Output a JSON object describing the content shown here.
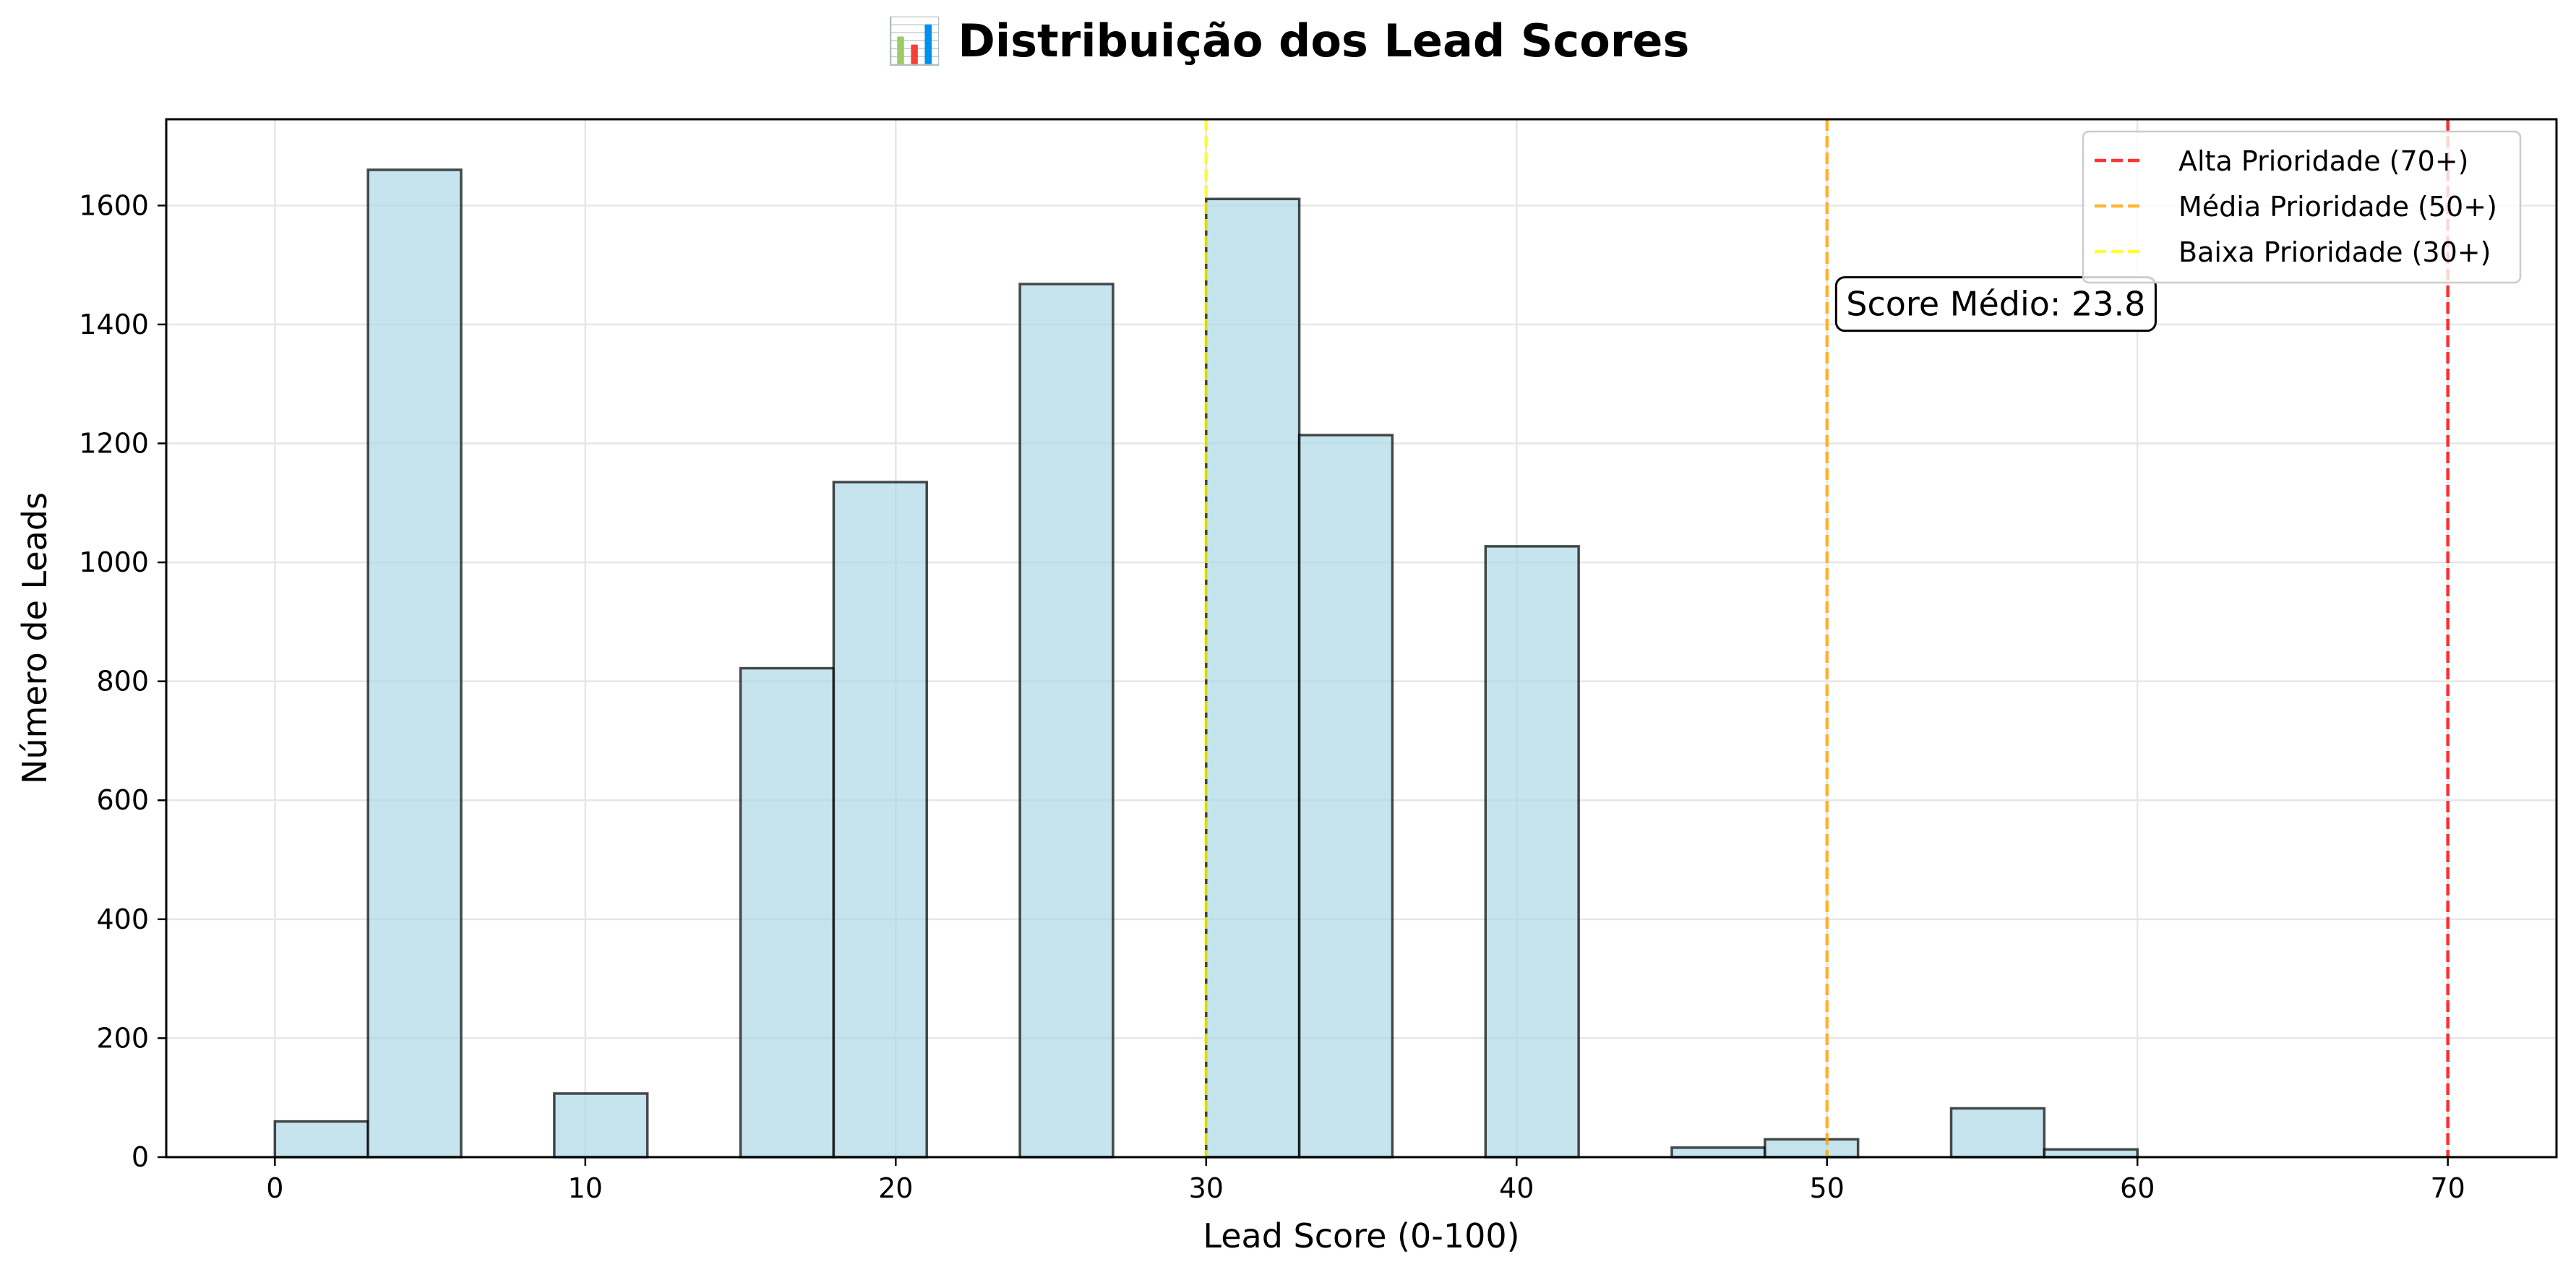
{
  "chart_data": {
    "type": "bar",
    "title": "📊 Distribuição dos Lead Scores",
    "xlabel": "Lead Score (0-100)",
    "ylabel": "Número de Leads",
    "xlim": [
      -3.5,
      73.5
    ],
    "ylim": [
      0,
      1745
    ],
    "xticks": [
      0,
      10,
      20,
      30,
      40,
      50,
      60,
      70
    ],
    "yticks": [
      0,
      200,
      400,
      600,
      800,
      1000,
      1200,
      1400,
      1600
    ],
    "grid": true,
    "bar_color": "#add8e6",
    "bar_edge_color": "#000000",
    "bins": [
      {
        "x0": 0,
        "x1": 3,
        "count": 60
      },
      {
        "x0": 3,
        "x1": 6,
        "count": 1660
      },
      {
        "x0": 6,
        "x1": 9,
        "count": 0
      },
      {
        "x0": 9,
        "x1": 12,
        "count": 107
      },
      {
        "x0": 12,
        "x1": 15,
        "count": 0
      },
      {
        "x0": 15,
        "x1": 18,
        "count": 822
      },
      {
        "x0": 18,
        "x1": 21,
        "count": 1135
      },
      {
        "x0": 21,
        "x1": 24,
        "count": 0
      },
      {
        "x0": 24,
        "x1": 27,
        "count": 1468
      },
      {
        "x0": 27,
        "x1": 30,
        "count": 0
      },
      {
        "x0": 30,
        "x1": 33,
        "count": 1611
      },
      {
        "x0": 33,
        "x1": 36,
        "count": 1214
      },
      {
        "x0": 36,
        "x1": 39,
        "count": 0
      },
      {
        "x0": 39,
        "x1": 42,
        "count": 1027
      },
      {
        "x0": 42,
        "x1": 45,
        "count": 0
      },
      {
        "x0": 45,
        "x1": 48,
        "count": 16
      },
      {
        "x0": 48,
        "x1": 51,
        "count": 30
      },
      {
        "x0": 51,
        "x1": 54,
        "count": 0
      },
      {
        "x0": 54,
        "x1": 57,
        "count": 82
      },
      {
        "x0": 57,
        "x1": 60,
        "count": 13
      }
    ],
    "threshold_lines": [
      {
        "label": "Alta Prioridade (70+)",
        "x": 70,
        "color": "#ff0000"
      },
      {
        "label": "Média Prioridade (50+)",
        "x": 50,
        "color": "#ffa500"
      },
      {
        "label": "Baixa Prioridade (30+)",
        "x": 30,
        "color": "#ffff00"
      }
    ],
    "legend_position": "top-right",
    "annotation": {
      "text": "Score Médio: 23.8",
      "x": 50.2,
      "y": 1410
    }
  }
}
